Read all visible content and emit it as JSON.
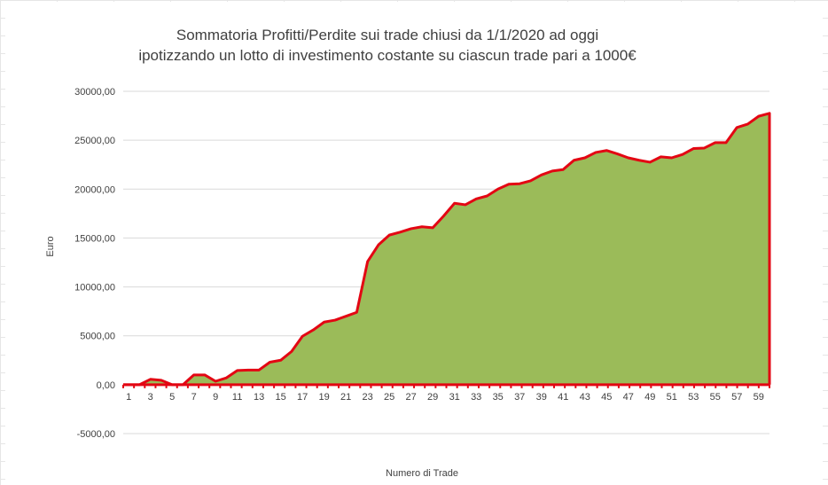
{
  "chart_data": {
    "type": "area",
    "title_lines": [
      "Sommatoria Profitti/Perdite sui trade chiusi da 1/1/2020 ad oggi",
      "ipotizzando un lotto di investimento costante su ciascun trade pari a 1000€"
    ],
    "xlabel": "Numero di Trade",
    "ylabel": "Euro",
    "ylim": [
      -5000,
      30000
    ],
    "y_ticks": [
      30000,
      25000,
      20000,
      15000,
      10000,
      5000,
      0,
      -5000
    ],
    "y_tick_labels": [
      "30000,00",
      "25000,00",
      "20000,00",
      "15000,00",
      "10000,00",
      "5000,00",
      "0,00",
      "-5000,00"
    ],
    "x_tick_labels": [
      "1",
      "3",
      "5",
      "7",
      "9",
      "11",
      "13",
      "15",
      "17",
      "19",
      "21",
      "23",
      "25",
      "27",
      "29",
      "31",
      "33",
      "35",
      "37",
      "39",
      "41",
      "43",
      "45",
      "47",
      "49",
      "51",
      "53",
      "55",
      "57",
      "59"
    ],
    "x": [
      1,
      2,
      3,
      4,
      5,
      6,
      7,
      8,
      9,
      10,
      11,
      12,
      13,
      14,
      15,
      16,
      17,
      18,
      19,
      20,
      21,
      22,
      23,
      24,
      25,
      26,
      27,
      28,
      29,
      30,
      31,
      32,
      33,
      34,
      35,
      36,
      37,
      38,
      39,
      40,
      41,
      42,
      43,
      44,
      45,
      46,
      47,
      48,
      49,
      50,
      51,
      52,
      53,
      54,
      55,
      56,
      57,
      58,
      59,
      60
    ],
    "values": [
      0,
      0,
      550,
      450,
      0,
      0,
      1000,
      1000,
      350,
      700,
      1450,
      1500,
      1500,
      2300,
      2500,
      3400,
      4950,
      5600,
      6400,
      6600,
      7000,
      7400,
      12600,
      14300,
      15300,
      15600,
      15950,
      16150,
      16050,
      17250,
      18550,
      18400,
      19000,
      19300,
      20000,
      20500,
      20550,
      20850,
      21450,
      21850,
      22000,
      22950,
      23200,
      23750,
      23950,
      23600,
      23200,
      22950,
      22750,
      23300,
      23200,
      23550,
      24150,
      24200,
      24750,
      24750,
      26300,
      26650,
      27450,
      27750
    ],
    "fill_color": "#9bbb59",
    "line_color": "#e30613",
    "grid": true
  }
}
